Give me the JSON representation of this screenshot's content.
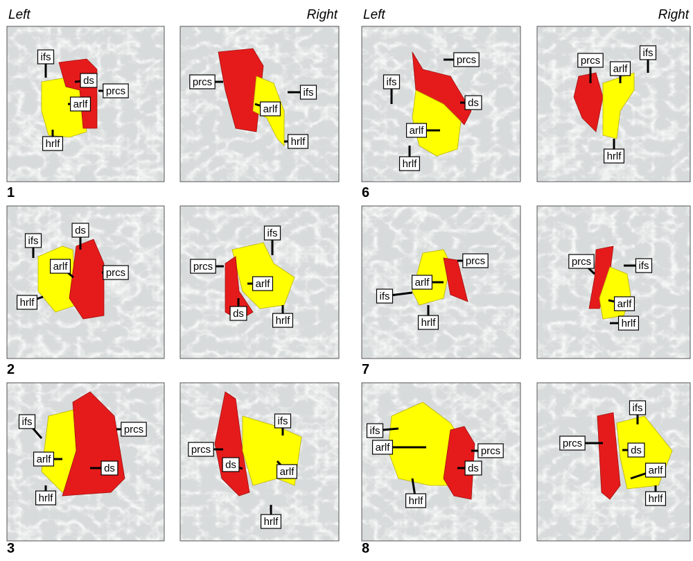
{
  "columns": [
    {
      "left_header": "Left",
      "right_header": "Right",
      "subjects": [
        {
          "number": "1",
          "left": [
            "ifs",
            "ds",
            "prcs",
            "arlf",
            "hrlf"
          ],
          "right": [
            "prcs",
            "ifs",
            "arlf",
            "hrlf"
          ]
        },
        {
          "number": "2",
          "left": [
            "ds",
            "ifs",
            "arlf",
            "prcs",
            "hrlf"
          ],
          "right": [
            "ifs",
            "prcs",
            "arlf",
            "ds",
            "hrlf"
          ]
        },
        {
          "number": "3",
          "left": [
            "ifs",
            "prcs",
            "arlf",
            "ds",
            "hrlf"
          ],
          "right": [
            "ifs",
            "prcs",
            "ds",
            "arlf",
            "hrlf"
          ]
        }
      ]
    },
    {
      "left_header": "Left",
      "right_header": "Right",
      "subjects": [
        {
          "number": "6",
          "left": [
            "prcs",
            "ifs",
            "ds",
            "arlf",
            "hrlf"
          ],
          "right": [
            "prcs",
            "ifs",
            "arlf",
            "hrlf"
          ]
        },
        {
          "number": "7",
          "left": [
            "prcs",
            "arlf",
            "ifs",
            "hrlf"
          ],
          "right": [
            "prcs",
            "ifs",
            "arlf",
            "hrlf"
          ]
        },
        {
          "number": "8",
          "left": [
            "ifs",
            "arlf",
            "prcs",
            "ds",
            "hrlf"
          ],
          "right": [
            "ifs",
            "prcs",
            "ds",
            "arlf",
            "hrlf"
          ]
        }
      ]
    }
  ]
}
